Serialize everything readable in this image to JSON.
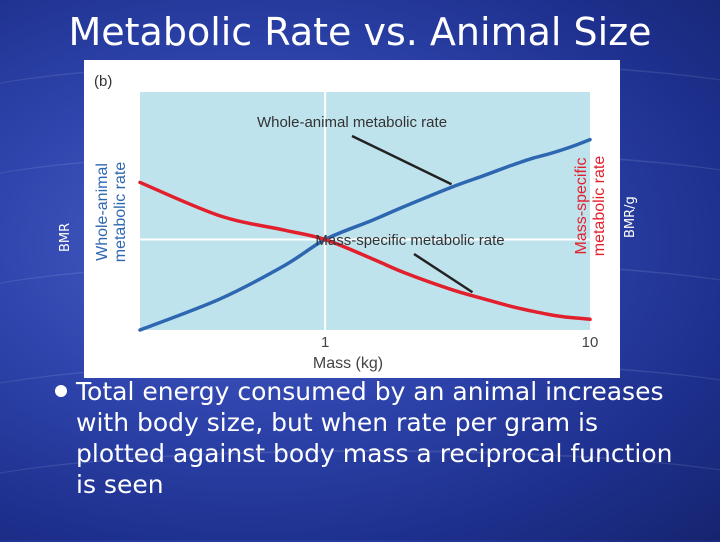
{
  "slide": {
    "title": "Metabolic Rate vs. Animal Size",
    "left_side_label": "BMR",
    "right_side_label": "BMR/g",
    "bullet": "Total energy consumed by an animal increases with body size, but when rate per gram is plotted against body mass a reciprocal function is seen"
  },
  "chart_data": {
    "type": "line",
    "panel_label": "(b)",
    "xlabel": "Mass (kg)",
    "ylabel_left": [
      "Whole-animal",
      "metabolic rate"
    ],
    "ylabel_right": [
      "Mass-specific",
      "metabolic rate"
    ],
    "x_ticks": [
      {
        "value": 1,
        "label": "1"
      },
      {
        "value": 10,
        "label": "10"
      }
    ],
    "xlim": [
      0.2,
      10
    ],
    "ylim": [
      0,
      1
    ],
    "grid": true,
    "series": [
      {
        "name": "Whole-animal metabolic rate",
        "color": "#2e67b1",
        "x": [
          0.2,
          0.4,
          0.7,
          1,
          1.5,
          2,
          3,
          4,
          5,
          6,
          7,
          8,
          9,
          10
        ],
        "y": [
          0.0,
          0.13,
          0.27,
          0.38,
          0.46,
          0.52,
          0.6,
          0.65,
          0.69,
          0.72,
          0.74,
          0.76,
          0.78,
          0.8
        ]
      },
      {
        "name": "Mass-specific metabolic rate",
        "color": "#e2202d",
        "x": [
          0.2,
          0.4,
          0.7,
          1,
          1.5,
          2,
          3,
          4,
          5,
          6,
          7,
          8,
          9,
          10
        ],
        "y": [
          0.62,
          0.48,
          0.42,
          0.38,
          0.3,
          0.24,
          0.17,
          0.13,
          0.1,
          0.08,
          0.065,
          0.055,
          0.05,
          0.045
        ]
      }
    ],
    "annotations": [
      {
        "text": "Whole-animal metabolic rate",
        "points_to": "Whole-animal metabolic rate"
      },
      {
        "text": "Mass-specific metabolic rate",
        "points_to": "Mass-specific metabolic rate"
      }
    ],
    "colors": {
      "plot_background": "#bfe3ec",
      "card_background": "#ffffff",
      "grid": "#ffffff",
      "annotation": "#222222"
    }
  }
}
